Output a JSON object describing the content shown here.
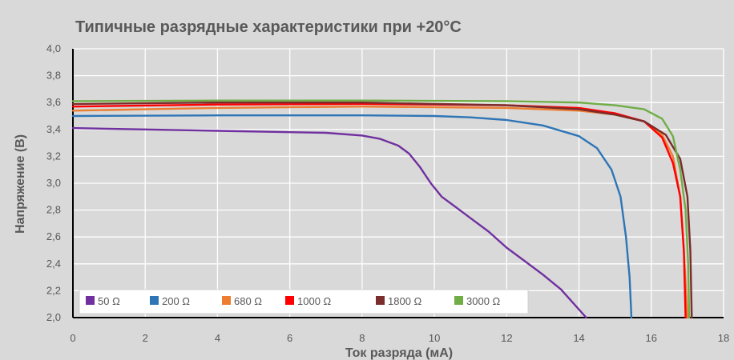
{
  "chart_data": {
    "type": "line",
    "title": "Типичные разрядные характеристики при +20°C",
    "xlabel": "Ток разряда (мА)",
    "ylabel": "Напряжение (В)",
    "xlim": [
      0,
      18
    ],
    "ylim": [
      2.0,
      4.0
    ],
    "x_ticks": [
      "0",
      "2",
      "4",
      "6",
      "8",
      "10",
      "12",
      "14",
      "16",
      "18"
    ],
    "y_ticks": [
      "2,0",
      "2,2",
      "2,4",
      "2,6",
      "2,8",
      "3,0",
      "3,2",
      "3,4",
      "3,6",
      "3,8",
      "4,0"
    ],
    "grid": true,
    "legend_position": "bottom-left",
    "series": [
      {
        "name": "50 Ω",
        "color": "#7030a0",
        "points": [
          [
            0,
            3.41
          ],
          [
            2,
            3.4
          ],
          [
            4,
            3.39
          ],
          [
            6,
            3.38
          ],
          [
            7,
            3.375
          ],
          [
            8,
            3.355
          ],
          [
            8.5,
            3.33
          ],
          [
            9,
            3.28
          ],
          [
            9.3,
            3.22
          ],
          [
            9.6,
            3.12
          ],
          [
            9.9,
            3.0
          ],
          [
            10.2,
            2.9
          ],
          [
            10.6,
            2.82
          ],
          [
            11,
            2.74
          ],
          [
            11.5,
            2.64
          ],
          [
            12,
            2.52
          ],
          [
            12.5,
            2.42
          ],
          [
            13,
            2.32
          ],
          [
            13.5,
            2.21
          ],
          [
            14.2,
            2.0
          ]
        ]
      },
      {
        "name": "200 Ω",
        "color": "#2e75b6",
        "points": [
          [
            0,
            3.5
          ],
          [
            4,
            3.505
          ],
          [
            8,
            3.505
          ],
          [
            10,
            3.5
          ],
          [
            11,
            3.49
          ],
          [
            12,
            3.47
          ],
          [
            13,
            3.43
          ],
          [
            14,
            3.35
          ],
          [
            14.5,
            3.26
          ],
          [
            14.9,
            3.1
          ],
          [
            15.15,
            2.9
          ],
          [
            15.3,
            2.6
          ],
          [
            15.4,
            2.3
          ],
          [
            15.45,
            2.0
          ]
        ]
      },
      {
        "name": "680 Ω",
        "color": "#ed7d31",
        "points": [
          [
            0,
            3.54
          ],
          [
            4,
            3.56
          ],
          [
            8,
            3.57
          ],
          [
            12,
            3.56
          ],
          [
            14,
            3.54
          ],
          [
            15,
            3.51
          ],
          [
            15.8,
            3.46
          ],
          [
            16.3,
            3.36
          ],
          [
            16.6,
            3.2
          ],
          [
            16.8,
            2.9
          ],
          [
            16.9,
            2.5
          ],
          [
            17.0,
            2.0
          ]
        ]
      },
      {
        "name": "1000 Ω",
        "color": "#ff0000",
        "points": [
          [
            0,
            3.57
          ],
          [
            4,
            3.585
          ],
          [
            8,
            3.59
          ],
          [
            12,
            3.58
          ],
          [
            14,
            3.56
          ],
          [
            15,
            3.52
          ],
          [
            15.8,
            3.46
          ],
          [
            16.3,
            3.34
          ],
          [
            16.6,
            3.15
          ],
          [
            16.8,
            2.9
          ],
          [
            16.9,
            2.5
          ],
          [
            16.95,
            2.0
          ]
        ]
      },
      {
        "name": "1800 Ω",
        "color": "#7b2c2c",
        "points": [
          [
            0,
            3.59
          ],
          [
            4,
            3.6
          ],
          [
            8,
            3.6
          ],
          [
            12,
            3.58
          ],
          [
            14,
            3.55
          ],
          [
            15,
            3.51
          ],
          [
            15.8,
            3.46
          ],
          [
            16.4,
            3.36
          ],
          [
            16.8,
            3.18
          ],
          [
            17.0,
            2.9
          ],
          [
            17.08,
            2.5
          ],
          [
            17.12,
            2.0
          ]
        ]
      },
      {
        "name": "3000 Ω",
        "color": "#70ad47",
        "points": [
          [
            0,
            3.61
          ],
          [
            4,
            3.615
          ],
          [
            8,
            3.615
          ],
          [
            12,
            3.61
          ],
          [
            14,
            3.6
          ],
          [
            15,
            3.58
          ],
          [
            15.8,
            3.55
          ],
          [
            16.3,
            3.48
          ],
          [
            16.6,
            3.35
          ],
          [
            16.8,
            3.1
          ],
          [
            16.95,
            2.8
          ],
          [
            17.02,
            2.4
          ],
          [
            17.05,
            2.0
          ]
        ]
      }
    ]
  }
}
